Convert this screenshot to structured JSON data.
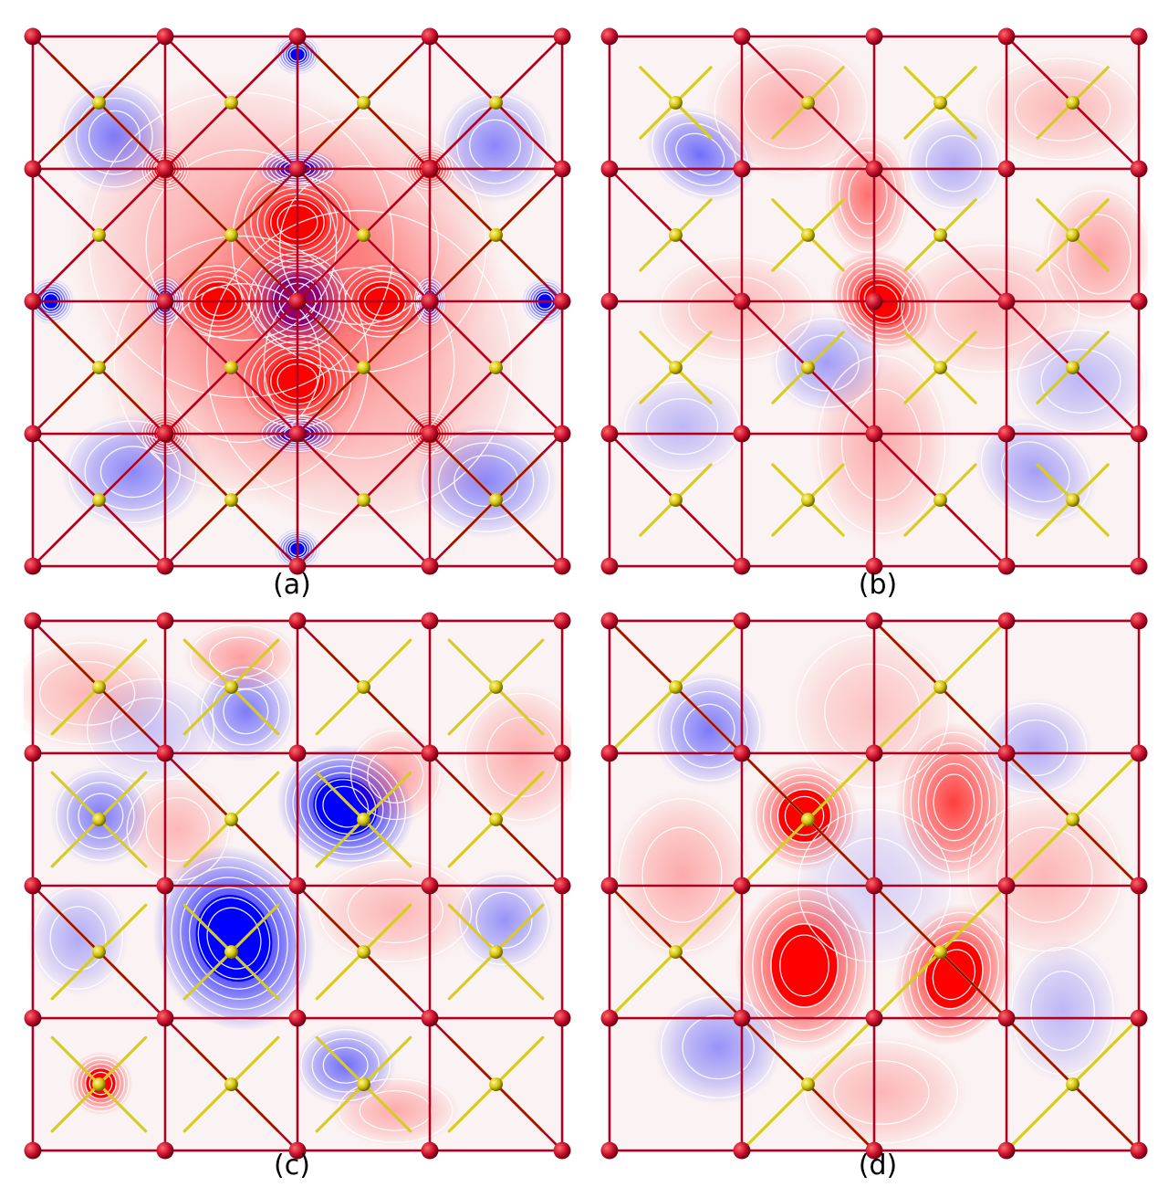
{
  "figure": {
    "panels": [
      {
        "id": "a",
        "label": "(a)"
      },
      {
        "id": "b",
        "label": "(b)"
      },
      {
        "id": "c",
        "label": "(c)"
      },
      {
        "id": "d",
        "label": "(d)"
      }
    ]
  },
  "colors": {
    "positive_density": "#ff0000",
    "negative_density": "#0000ff",
    "contour_lines": "#ffffff",
    "lattice_bonds": "#b00020",
    "lattice_atoms": "#c8102e",
    "interstitial_atoms": "#d4c400",
    "interstitial_bonds": "#d8cc20"
  }
}
